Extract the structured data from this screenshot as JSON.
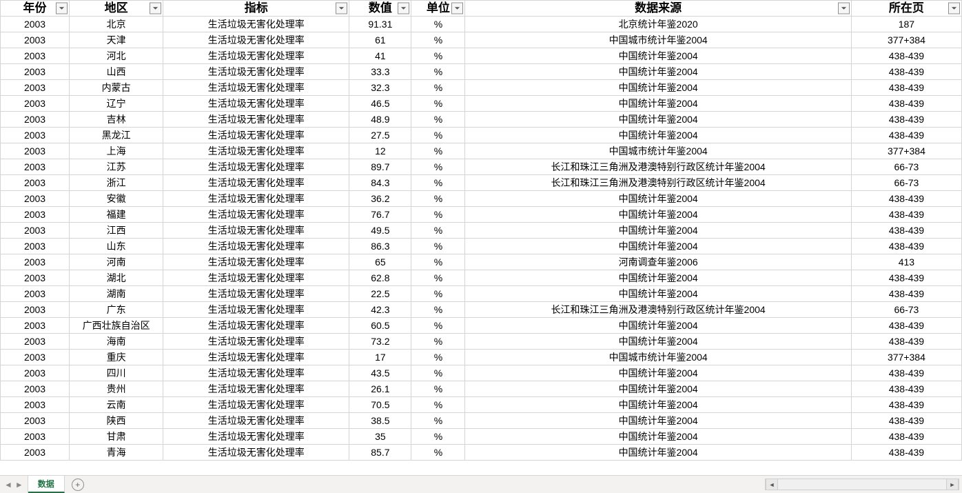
{
  "sheet": {
    "active_tab_label": "数据",
    "new_tab_tooltip": "New sheet"
  },
  "table": {
    "columns": [
      {
        "key": "year",
        "label": "年份",
        "filter": true
      },
      {
        "key": "region",
        "label": "地区",
        "filter": true
      },
      {
        "key": "indicator",
        "label": "指标",
        "filter": true
      },
      {
        "key": "value",
        "label": "数值",
        "filter": true
      },
      {
        "key": "unit",
        "label": "单位",
        "filter": true
      },
      {
        "key": "source",
        "label": "数据来源",
        "filter": true
      },
      {
        "key": "page",
        "label": "所在页",
        "filter": true
      }
    ],
    "rows": [
      {
        "year": "2003",
        "region": "北京",
        "indicator": "生活垃圾无害化处理率",
        "value": "91.31",
        "unit": "%",
        "source": "北京统计年鉴2020",
        "page": "187"
      },
      {
        "year": "2003",
        "region": "天津",
        "indicator": "生活垃圾无害化处理率",
        "value": "61",
        "unit": "%",
        "source": "中国城市统计年鉴2004",
        "page": "377+384"
      },
      {
        "year": "2003",
        "region": "河北",
        "indicator": "生活垃圾无害化处理率",
        "value": "41",
        "unit": "%",
        "source": "中国统计年鉴2004",
        "page": "438-439"
      },
      {
        "year": "2003",
        "region": "山西",
        "indicator": "生活垃圾无害化处理率",
        "value": "33.3",
        "unit": "%",
        "source": "中国统计年鉴2004",
        "page": "438-439"
      },
      {
        "year": "2003",
        "region": "内蒙古",
        "indicator": "生活垃圾无害化处理率",
        "value": "32.3",
        "unit": "%",
        "source": "中国统计年鉴2004",
        "page": "438-439"
      },
      {
        "year": "2003",
        "region": "辽宁",
        "indicator": "生活垃圾无害化处理率",
        "value": "46.5",
        "unit": "%",
        "source": "中国统计年鉴2004",
        "page": "438-439"
      },
      {
        "year": "2003",
        "region": "吉林",
        "indicator": "生活垃圾无害化处理率",
        "value": "48.9",
        "unit": "%",
        "source": "中国统计年鉴2004",
        "page": "438-439"
      },
      {
        "year": "2003",
        "region": "黑龙江",
        "indicator": "生活垃圾无害化处理率",
        "value": "27.5",
        "unit": "%",
        "source": "中国统计年鉴2004",
        "page": "438-439"
      },
      {
        "year": "2003",
        "region": "上海",
        "indicator": "生活垃圾无害化处理率",
        "value": "12",
        "unit": "%",
        "source": "中国城市统计年鉴2004",
        "page": "377+384"
      },
      {
        "year": "2003",
        "region": "江苏",
        "indicator": "生活垃圾无害化处理率",
        "value": "89.7",
        "unit": "%",
        "source": "长江和珠江三角洲及港澳特别行政区统计年鉴2004",
        "page": "66-73"
      },
      {
        "year": "2003",
        "region": "浙江",
        "indicator": "生活垃圾无害化处理率",
        "value": "84.3",
        "unit": "%",
        "source": "长江和珠江三角洲及港澳特别行政区统计年鉴2004",
        "page": "66-73"
      },
      {
        "year": "2003",
        "region": "安徽",
        "indicator": "生活垃圾无害化处理率",
        "value": "36.2",
        "unit": "%",
        "source": "中国统计年鉴2004",
        "page": "438-439"
      },
      {
        "year": "2003",
        "region": "福建",
        "indicator": "生活垃圾无害化处理率",
        "value": "76.7",
        "unit": "%",
        "source": "中国统计年鉴2004",
        "page": "438-439"
      },
      {
        "year": "2003",
        "region": "江西",
        "indicator": "生活垃圾无害化处理率",
        "value": "49.5",
        "unit": "%",
        "source": "中国统计年鉴2004",
        "page": "438-439"
      },
      {
        "year": "2003",
        "region": "山东",
        "indicator": "生活垃圾无害化处理率",
        "value": "86.3",
        "unit": "%",
        "source": "中国统计年鉴2004",
        "page": "438-439"
      },
      {
        "year": "2003",
        "region": "河南",
        "indicator": "生活垃圾无害化处理率",
        "value": "65",
        "unit": "%",
        "source": "河南调查年鉴2006",
        "page": "413"
      },
      {
        "year": "2003",
        "region": "湖北",
        "indicator": "生活垃圾无害化处理率",
        "value": "62.8",
        "unit": "%",
        "source": "中国统计年鉴2004",
        "page": "438-439"
      },
      {
        "year": "2003",
        "region": "湖南",
        "indicator": "生活垃圾无害化处理率",
        "value": "22.5",
        "unit": "%",
        "source": "中国统计年鉴2004",
        "page": "438-439"
      },
      {
        "year": "2003",
        "region": "广东",
        "indicator": "生活垃圾无害化处理率",
        "value": "42.3",
        "unit": "%",
        "source": "长江和珠江三角洲及港澳特别行政区统计年鉴2004",
        "page": "66-73"
      },
      {
        "year": "2003",
        "region": "广西壮族自治区",
        "indicator": "生活垃圾无害化处理率",
        "value": "60.5",
        "unit": "%",
        "source": "中国统计年鉴2004",
        "page": "438-439"
      },
      {
        "year": "2003",
        "region": "海南",
        "indicator": "生活垃圾无害化处理率",
        "value": "73.2",
        "unit": "%",
        "source": "中国统计年鉴2004",
        "page": "438-439"
      },
      {
        "year": "2003",
        "region": "重庆",
        "indicator": "生活垃圾无害化处理率",
        "value": "17",
        "unit": "%",
        "source": "中国城市统计年鉴2004",
        "page": "377+384"
      },
      {
        "year": "2003",
        "region": "四川",
        "indicator": "生活垃圾无害化处理率",
        "value": "43.5",
        "unit": "%",
        "source": "中国统计年鉴2004",
        "page": "438-439"
      },
      {
        "year": "2003",
        "region": "贵州",
        "indicator": "生活垃圾无害化处理率",
        "value": "26.1",
        "unit": "%",
        "source": "中国统计年鉴2004",
        "page": "438-439"
      },
      {
        "year": "2003",
        "region": "云南",
        "indicator": "生活垃圾无害化处理率",
        "value": "70.5",
        "unit": "%",
        "source": "中国统计年鉴2004",
        "page": "438-439"
      },
      {
        "year": "2003",
        "region": "陕西",
        "indicator": "生活垃圾无害化处理率",
        "value": "38.5",
        "unit": "%",
        "source": "中国统计年鉴2004",
        "page": "438-439"
      },
      {
        "year": "2003",
        "region": "甘肃",
        "indicator": "生活垃圾无害化处理率",
        "value": "35",
        "unit": "%",
        "source": "中国统计年鉴2004",
        "page": "438-439"
      },
      {
        "year": "2003",
        "region": "青海",
        "indicator": "生活垃圾无害化处理率",
        "value": "85.7",
        "unit": "%",
        "source": "中国统计年鉴2004",
        "page": "438-439"
      }
    ]
  },
  "colors": {
    "grid_border": "#d4d4d4",
    "accent": "#217346",
    "tabbar_bg": "#f3f2f1"
  }
}
